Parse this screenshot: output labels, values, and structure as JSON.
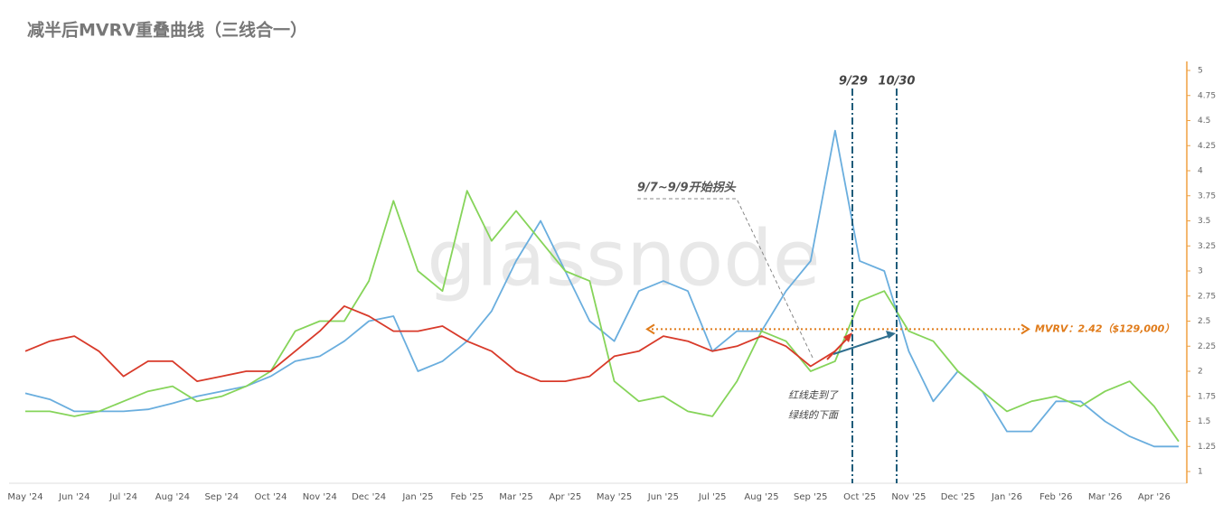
{
  "chart_data": {
    "type": "line",
    "title": "减半后MVRV重叠曲线（三线合一）",
    "watermark": "glassnode",
    "categories": [
      "May '24",
      null,
      "Jun '24",
      null,
      "Jul '24",
      null,
      "Aug '24",
      null,
      "Sep '24",
      null,
      "Oct '24",
      null,
      "Nov '24",
      null,
      "Dec '24",
      null,
      "Jan '25",
      null,
      "Feb '25",
      null,
      "Mar '25",
      null,
      "Apr '25",
      null,
      "May '25",
      null,
      "Jun '25",
      null,
      "Jul '25",
      null,
      "Aug '25",
      null,
      "Sep '25",
      null,
      "Oct '25",
      null,
      "Nov '25",
      null,
      "Dec '25",
      null,
      "Jan '26",
      null,
      "Feb '26",
      null,
      "Mar '26",
      null,
      "Apr '26",
      null
    ],
    "series": [
      {
        "color": "#6aaede",
        "values": [
          1.78,
          1.72,
          1.6,
          1.6,
          1.6,
          1.62,
          1.68,
          1.75,
          1.8,
          1.85,
          1.95,
          2.1,
          2.15,
          2.3,
          2.5,
          2.55,
          2.0,
          2.1,
          2.3,
          2.6,
          3.1,
          3.5,
          3.0,
          2.5,
          2.3,
          2.8,
          2.9,
          2.8,
          2.2,
          2.4,
          2.4,
          2.8,
          3.1,
          4.4,
          3.1,
          3.0,
          2.2,
          1.7,
          2.0,
          1.8,
          1.4,
          1.4,
          1.7,
          1.7,
          1.5,
          1.35,
          1.25,
          1.25
        ]
      },
      {
        "color": "#86d45a",
        "values": [
          1.6,
          1.6,
          1.55,
          1.6,
          1.7,
          1.8,
          1.85,
          1.7,
          1.75,
          1.85,
          2.0,
          2.4,
          2.5,
          2.5,
          2.9,
          3.7,
          3.0,
          2.8,
          3.8,
          3.3,
          3.6,
          3.3,
          3.0,
          2.9,
          1.9,
          1.7,
          1.75,
          1.6,
          1.55,
          1.9,
          2.4,
          2.3,
          2.0,
          2.1,
          2.7,
          2.8,
          2.4,
          2.3,
          2.0,
          1.8,
          1.6,
          1.7,
          1.75,
          1.65,
          1.8,
          1.9,
          1.65,
          1.3
        ]
      },
      {
        "color": "#d83a2a",
        "values": [
          2.2,
          2.3,
          2.35,
          2.2,
          1.95,
          2.1,
          2.1,
          1.9,
          1.95,
          2.0,
          2.0,
          2.2,
          2.4,
          2.65,
          2.55,
          2.4,
          2.4,
          2.45,
          2.3,
          2.2,
          2.0,
          1.9,
          1.9,
          1.95,
          2.15,
          2.2,
          2.35,
          2.3,
          2.2,
          2.25,
          2.35,
          2.25,
          2.05,
          2.2,
          null,
          null,
          null,
          null,
          null,
          null,
          null,
          null,
          null,
          null,
          null,
          null,
          null,
          null
        ]
      }
    ],
    "ylim": [
      1,
      5
    ],
    "yticks": [
      1,
      1.25,
      1.5,
      1.75,
      2,
      2.25,
      2.5,
      2.75,
      3,
      3.25,
      3.5,
      3.75,
      4,
      4.25,
      4.5,
      4.75,
      5
    ],
    "axis_color": "#f0a040",
    "reference_line": {
      "value": 2.42,
      "label": "MVRV：2.42（$129,000）",
      "color": "#e07b1a"
    },
    "annotations": [
      "9/29",
      "10/30",
      "9/7~9/9开始拐头",
      "红线走到了",
      "绿线的下面"
    ]
  }
}
